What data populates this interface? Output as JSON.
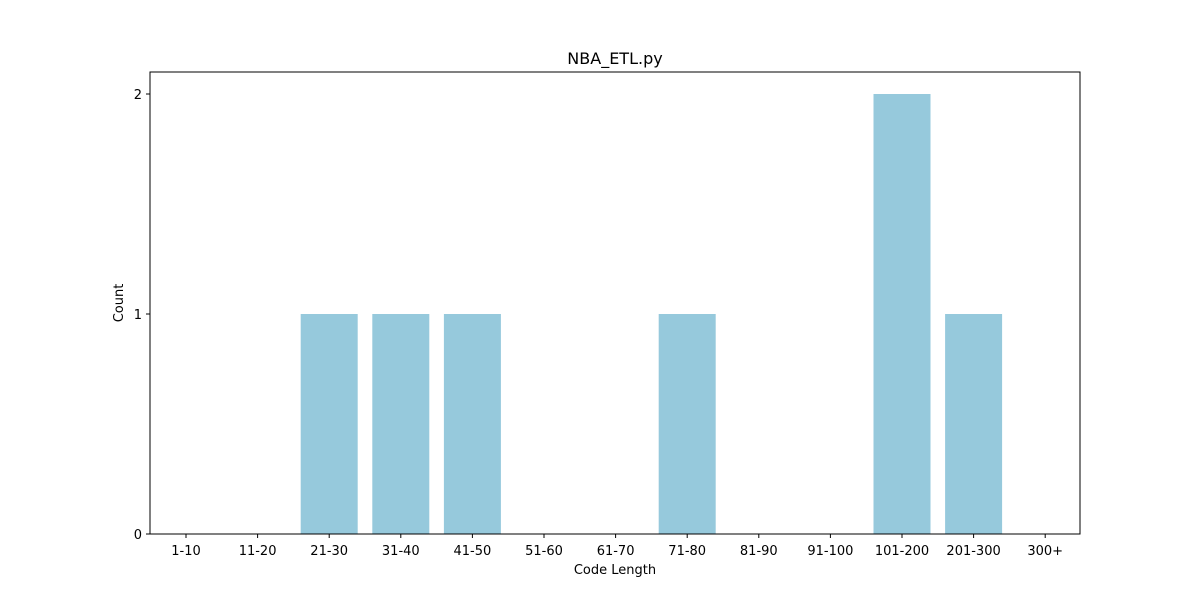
{
  "chart_data": {
    "type": "bar",
    "title": "NBA_ETL.py",
    "xlabel": "Code Length",
    "ylabel": "Count",
    "categories": [
      "1-10",
      "11-20",
      "21-30",
      "31-40",
      "41-50",
      "51-60",
      "61-70",
      "71-80",
      "81-90",
      "91-100",
      "101-200",
      "201-300",
      "300+"
    ],
    "values": [
      0,
      0,
      1,
      1,
      1,
      0,
      0,
      1,
      0,
      0,
      2,
      1,
      0
    ],
    "ylim": [
      0,
      2.1
    ],
    "yticks": [
      "0",
      "1",
      "2"
    ],
    "grid": false,
    "legend": "none",
    "bar_color": "#96c9dc"
  }
}
